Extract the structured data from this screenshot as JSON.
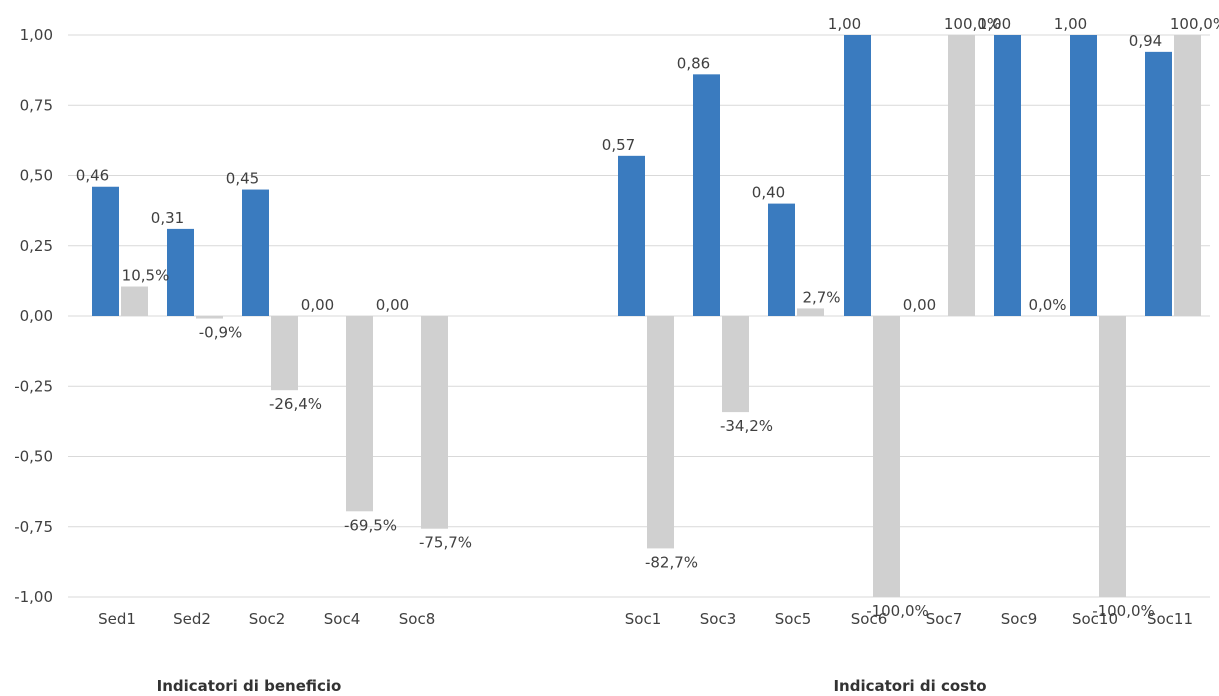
{
  "chart_data": {
    "type": "bar",
    "categories": [
      "Sed1",
      "Sed2",
      "Soc2",
      "Soc4",
      "Soc8",
      "Soc1",
      "Soc3",
      "Soc5",
      "Soc6",
      "Soc7",
      "Soc9",
      "Soc10",
      "Soc11"
    ],
    "groups": [
      {
        "label": "Indicatori di beneficio",
        "categories": [
          "Sed1",
          "Sed2",
          "Soc2",
          "Soc4",
          "Soc8"
        ]
      },
      {
        "label": "Indicatori di costo",
        "categories": [
          "Soc1",
          "Soc3",
          "Soc5",
          "Soc6",
          "Soc7",
          "Soc9",
          "Soc10",
          "Soc11"
        ]
      }
    ],
    "series": [
      {
        "values": [
          0.46,
          0.31,
          0.45,
          0.0,
          0.0,
          0.57,
          0.86,
          0.4,
          1.0,
          0.0,
          1.0,
          1.0,
          0.94
        ],
        "labels": [
          "0,46",
          "0,31",
          "0,45",
          "0,00",
          "0,00",
          "0,57",
          "0,86",
          "0,40",
          "1,00",
          "0,00",
          "1,00",
          "1,00",
          "0,94"
        ],
        "color": "#3a7bbf"
      },
      {
        "values": [
          0.105,
          -0.009,
          -0.264,
          -0.695,
          -0.757,
          -0.827,
          -0.342,
          0.027,
          -1.0,
          1.0,
          0.0,
          -1.0,
          1.0
        ],
        "labels": [
          "10,5%",
          "-0,9%",
          "-26,4%",
          "-69,5%",
          "-75,7%",
          "-82,7%",
          "-34,2%",
          "2,7%",
          "-100,0%",
          "100,0%",
          "0,0%",
          "-100,0%",
          "100,0%"
        ],
        "color": "#d0d0d0"
      }
    ],
    "yticks": [
      "1,00",
      "0,75",
      "0,50",
      "0,25",
      "0,00",
      "-0,25",
      "-0,50",
      "-0,75",
      "-1,00"
    ],
    "ylim": [
      -1.0,
      1.0
    ],
    "grid": true
  }
}
